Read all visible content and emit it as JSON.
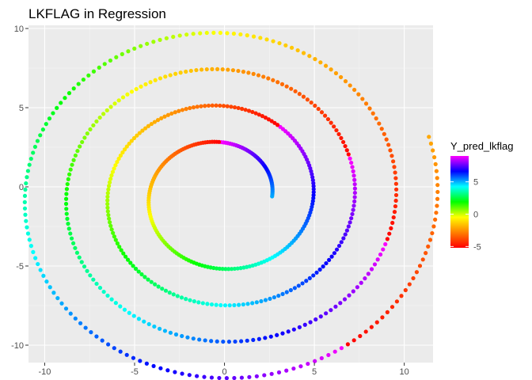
{
  "chart_data": {
    "type": "scatter",
    "title": "LKFLAG in Regression",
    "xlabel": "",
    "ylabel": "",
    "xlim": [
      -10.9,
      11.6
    ],
    "ylim": [
      -11.1,
      10.2
    ],
    "x_ticks": [
      -10,
      -5,
      0,
      5,
      10
    ],
    "y_ticks": [
      10,
      5,
      0,
      -5,
      -10
    ],
    "x_tick_labels": [
      "-10",
      "-5",
      "0",
      "5",
      "10"
    ],
    "y_tick_labels": [
      "10",
      "5",
      "0",
      "-5",
      "-10"
    ],
    "grid": true,
    "legend_position": "right",
    "spiral": {
      "description_points_from": "Archimedean spiral",
      "center": [
        -0.2,
        -0.6
      ],
      "start_radius": 2.85,
      "radius_growth_per_turn": 2.3,
      "turns": 4.05,
      "point_count": 700
    },
    "color_by": {
      "name": "Y_pred_lkflag",
      "range": [
        -5.2,
        9
      ],
      "tick_values": [
        5,
        0,
        -5
      ],
      "tick_labels": [
        "5",
        "0",
        "-5"
      ],
      "colors": [
        "#ff0000",
        "#ff7f00",
        "#ffff00",
        "#00ff00",
        "#00ffff",
        "#0000ff",
        "#ff00ff"
      ]
    }
  },
  "colors": {
    "panel_background": "#ebebeb",
    "grid_major": "#ffffff",
    "grid_minor": "#f5f5f5",
    "tick": "#333333"
  }
}
